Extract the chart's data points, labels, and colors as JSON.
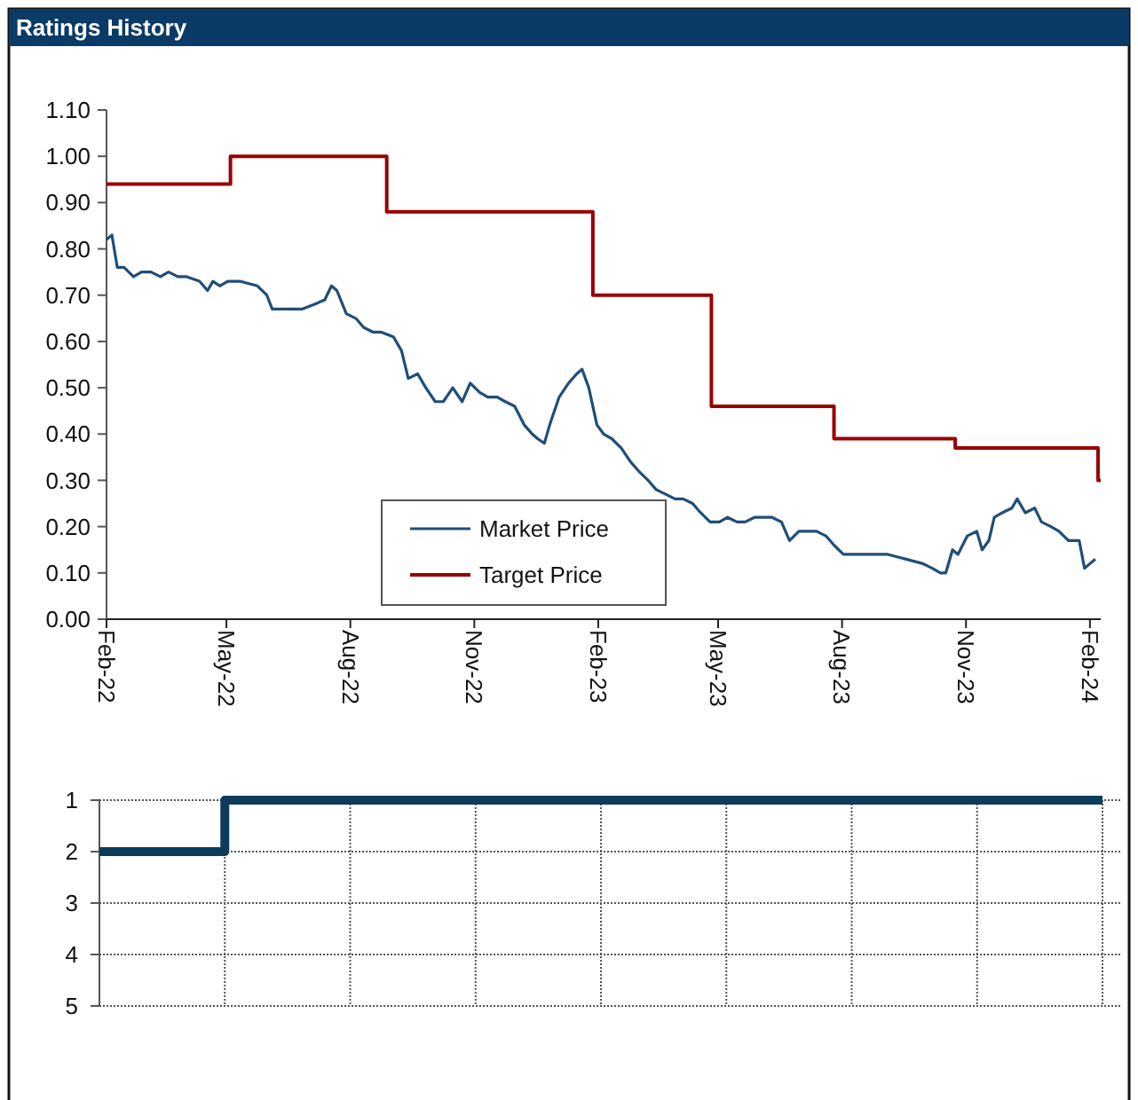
{
  "chart_data": [
    {
      "type": "line",
      "title": "Ratings History",
      "legend": "bottom",
      "xlim": [
        "2022-02-01",
        "2024-02-09"
      ],
      "xticks": [
        {
          "value": "2022-02-01",
          "label": "Feb-22"
        },
        {
          "value": "2022-05-01",
          "label": "May-22"
        },
        {
          "value": "2022-08-01",
          "label": "Aug-22"
        },
        {
          "value": "2022-11-01",
          "label": "Nov-22"
        },
        {
          "value": "2023-02-01",
          "label": "Feb-23"
        },
        {
          "value": "2023-05-01",
          "label": "May-23"
        },
        {
          "value": "2023-08-01",
          "label": "Aug-23"
        },
        {
          "value": "2023-11-01",
          "label": "Nov-23"
        },
        {
          "value": "2024-02-01",
          "label": "Feb-24"
        }
      ],
      "ylim": [
        0,
        1.1
      ],
      "yticks": [
        {
          "value": 0,
          "label": "0.00"
        },
        {
          "value": 0.1,
          "label": "0.10"
        },
        {
          "value": 0.2,
          "label": "0.20"
        },
        {
          "value": 0.3,
          "label": "0.30"
        },
        {
          "value": 0.4,
          "label": "0.40"
        },
        {
          "value": 0.5,
          "label": "0.50"
        },
        {
          "value": 0.6,
          "label": "0.60"
        },
        {
          "value": 0.7,
          "label": "0.70"
        },
        {
          "value": 0.8,
          "label": "0.80"
        },
        {
          "value": 0.9,
          "label": "0.90"
        },
        {
          "value": 1,
          "label": "1.00"
        },
        {
          "value": 1.1,
          "label": "1.10"
        }
      ],
      "series": [
        {
          "name": "Market Price",
          "color": "#1f4e79",
          "x": [
            "2022-02-01",
            "2022-02-05",
            "2022-02-09",
            "2022-02-14",
            "2022-02-21",
            "2022-02-27",
            "2022-03-06",
            "2022-03-13",
            "2022-03-19",
            "2022-03-26",
            "2022-04-01",
            "2022-04-11",
            "2022-04-17",
            "2022-04-21",
            "2022-04-26",
            "2022-05-02",
            "2022-05-11",
            "2022-05-24",
            "2022-05-31",
            "2022-06-04",
            "2022-06-13",
            "2022-06-26",
            "2022-07-05",
            "2022-07-13",
            "2022-07-18",
            "2022-07-22",
            "2022-07-29",
            "2022-08-05",
            "2022-08-11",
            "2022-08-18",
            "2022-08-24",
            "2022-09-02",
            "2022-09-08",
            "2022-09-13",
            "2022-09-20",
            "2022-09-26",
            "2022-10-03",
            "2022-10-09",
            "2022-10-16",
            "2022-10-23",
            "2022-10-29",
            "2022-11-05",
            "2022-11-11",
            "2022-11-18",
            "2022-11-24",
            "2022-12-01",
            "2022-12-08",
            "2022-12-14",
            "2022-12-18",
            "2022-12-23",
            "2022-12-27",
            "2023-01-03",
            "2023-01-10",
            "2023-01-16",
            "2023-01-20",
            "2023-01-25",
            "2023-01-31",
            "2023-02-05",
            "2023-02-11",
            "2023-02-18",
            "2023-02-25",
            "2023-03-03",
            "2023-03-10",
            "2023-03-16",
            "2023-03-23",
            "2023-03-30",
            "2023-04-05",
            "2023-04-12",
            "2023-04-18",
            "2023-04-25",
            "2023-05-02",
            "2023-05-08",
            "2023-05-15",
            "2023-05-21",
            "2023-05-28",
            "2023-06-03",
            "2023-06-10",
            "2023-06-17",
            "2023-06-23",
            "2023-06-30",
            "2023-07-06",
            "2023-07-13",
            "2023-07-20",
            "2023-07-26",
            "2023-08-02",
            "2023-08-08",
            "2023-08-22",
            "2023-09-04",
            "2023-09-17",
            "2023-09-30",
            "2023-10-07",
            "2023-10-13",
            "2023-10-17",
            "2023-10-22",
            "2023-10-26",
            "2023-11-02",
            "2023-11-09",
            "2023-11-13",
            "2023-11-18",
            "2023-11-22",
            "2023-11-28",
            "2023-12-05",
            "2023-12-09",
            "2023-12-15",
            "2023-12-22",
            "2023-12-27",
            "2024-01-03",
            "2024-01-09",
            "2024-01-16",
            "2024-01-24",
            "2024-01-28",
            "2024-02-01",
            "2024-02-05"
          ],
          "values": [
            0.82,
            0.83,
            0.76,
            0.76,
            0.74,
            0.75,
            0.75,
            0.74,
            0.75,
            0.74,
            0.74,
            0.73,
            0.71,
            0.73,
            0.72,
            0.73,
            0.73,
            0.72,
            0.7,
            0.67,
            0.67,
            0.67,
            0.68,
            0.69,
            0.72,
            0.71,
            0.66,
            0.65,
            0.63,
            0.62,
            0.62,
            0.61,
            0.58,
            0.52,
            0.53,
            0.5,
            0.47,
            0.47,
            0.5,
            0.47,
            0.51,
            0.49,
            0.48,
            0.48,
            0.47,
            0.46,
            0.42,
            0.4,
            0.39,
            0.38,
            0.42,
            0.48,
            0.51,
            0.53,
            0.54,
            0.5,
            0.42,
            0.4,
            0.39,
            0.37,
            0.34,
            0.32,
            0.3,
            0.28,
            0.27,
            0.26,
            0.26,
            0.25,
            0.23,
            0.21,
            0.21,
            0.22,
            0.21,
            0.21,
            0.22,
            0.22,
            0.22,
            0.21,
            0.17,
            0.19,
            0.19,
            0.19,
            0.18,
            0.16,
            0.14,
            0.14,
            0.14,
            0.14,
            0.13,
            0.12,
            0.11,
            0.1,
            0.1,
            0.15,
            0.14,
            0.18,
            0.19,
            0.15,
            0.17,
            0.22,
            0.23,
            0.24,
            0.26,
            0.23,
            0.24,
            0.21,
            0.2,
            0.19,
            0.17,
            0.17,
            0.11,
            0.12,
            0.13
          ]
        },
        {
          "name": "Target Price",
          "type": "step",
          "color": "#990000",
          "x": [
            "2022-02-01",
            "2022-05-04",
            "2022-08-28",
            "2023-01-28",
            "2023-04-26",
            "2023-07-26",
            "2023-10-24",
            "2024-02-07",
            "2024-02-09"
          ],
          "values": [
            0.94,
            1.0,
            0.88,
            0.7,
            0.46,
            0.39,
            0.37,
            0.3,
            0.3
          ]
        }
      ]
    },
    {
      "type": "step",
      "grid": true,
      "categories": [
        null,
        null,
        null,
        null,
        null,
        null,
        null,
        null,
        null
      ],
      "ylim": [
        5,
        1
      ],
      "yticks": [
        1,
        2,
        3,
        4,
        5
      ],
      "series": [
        {
          "color": "#0d3b5c",
          "values": [
            2,
            1,
            1,
            1,
            1,
            1,
            1,
            1,
            1
          ]
        }
      ]
    }
  ]
}
